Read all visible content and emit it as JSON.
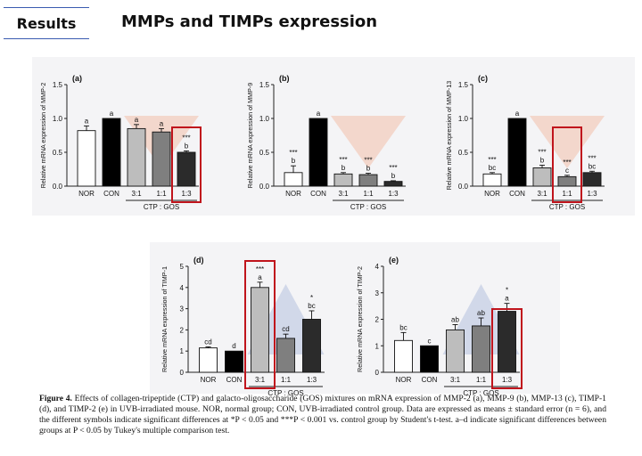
{
  "header": {
    "section_label": "Results",
    "title": "MMPs and TIMPs expression"
  },
  "caption": {
    "lead": "Figure 4.",
    "text": "Effects of collagen-tripeptide (CTP) and galacto-oligosaccharide (GOS) mixtures on mRNA expression of MMP-2 (a), MMP-9 (b), MMP-13 (c), TIMP-1 (d), and TIMP-2 (e) in UVB-irradiated mouse. NOR, normal group; CON, UVB-irradiated control group. Data are expressed as means ± standard error (n = 6), and the different symbols indicate significant differences at *P < 0.05 and ***P < 0.001 vs. control group by Student's t-test. a–d indicate significant differences between groups at P < 0.05 by Tukey's multiple comparison test."
  },
  "colors": {
    "nor": "#ffffff",
    "con": "#000000",
    "r31": "#bdbdbd",
    "r11": "#7f7f7f",
    "r13": "#2b2b2b",
    "highlight": "#c0141c"
  },
  "chart_data": [
    {
      "id": "a",
      "type": "bar",
      "panel_label": "(a)",
      "ylabel": "Relative mRNA expression of MMP-2",
      "ylim": [
        0,
        1.5
      ],
      "yticks": [
        "0.0",
        "0.5",
        "1.0",
        "1.5"
      ],
      "categories": [
        "NOR",
        "CON",
        "3:1",
        "1:1",
        "1:3"
      ],
      "group_label": "CTP : GOS",
      "values": [
        0.82,
        1.0,
        0.85,
        0.8,
        0.5
      ],
      "errors": [
        0.07,
        0.0,
        0.06,
        0.05,
        0.02
      ],
      "letters": [
        "a",
        "a",
        "a",
        "a",
        "b"
      ],
      "stars": [
        "",
        "",
        "",
        "",
        "***"
      ],
      "highlight": [
        4
      ]
    },
    {
      "id": "b",
      "type": "bar",
      "panel_label": "(b)",
      "ylabel": "Relative mRNA expression of MMP-9",
      "ylim": [
        0,
        1.5
      ],
      "yticks": [
        "0.0",
        "0.5",
        "1.0",
        "1.5"
      ],
      "categories": [
        "NOR",
        "CON",
        "3:1",
        "1:1",
        "1:3"
      ],
      "group_label": "CTP : GOS",
      "values": [
        0.2,
        1.0,
        0.18,
        0.17,
        0.07
      ],
      "errors": [
        0.1,
        0.0,
        0.02,
        0.02,
        0.01
      ],
      "letters": [
        "b",
        "a",
        "b",
        "b",
        "b"
      ],
      "stars": [
        "***",
        "",
        "***",
        "***",
        "***"
      ],
      "highlight": []
    },
    {
      "id": "c",
      "type": "bar",
      "panel_label": "(c)",
      "ylabel": "Relative mRNA expression of MMP-13",
      "ylim": [
        0,
        1.5
      ],
      "yticks": [
        "0.0",
        "0.5",
        "1.0",
        "1.5"
      ],
      "categories": [
        "NOR",
        "CON",
        "3:1",
        "1:1",
        "1:3"
      ],
      "group_label": "CTP : GOS",
      "values": [
        0.18,
        1.0,
        0.27,
        0.14,
        0.2
      ],
      "errors": [
        0.02,
        0.0,
        0.04,
        0.02,
        0.02
      ],
      "letters": [
        "bc",
        "a",
        "b",
        "c",
        "bc"
      ],
      "stars": [
        "***",
        "",
        "***",
        "***",
        "***"
      ],
      "highlight": [
        3
      ]
    },
    {
      "id": "d",
      "type": "bar",
      "panel_label": "(d)",
      "ylabel": "Relative mRNA expression of TIMP-1",
      "ylim": [
        0,
        5
      ],
      "yticks": [
        "0",
        "1",
        "2",
        "3",
        "4",
        "5"
      ],
      "categories": [
        "NOR",
        "CON",
        "3:1",
        "1:1",
        "1:3"
      ],
      "group_label": "CTP : GOS",
      "values": [
        1.15,
        1.0,
        4.0,
        1.6,
        2.5
      ],
      "errors": [
        0.05,
        0.0,
        0.25,
        0.2,
        0.4
      ],
      "letters": [
        "cd",
        "d",
        "a",
        "cd",
        "bc"
      ],
      "stars": [
        "",
        "",
        "***",
        "",
        "*"
      ],
      "highlight": [
        2
      ]
    },
    {
      "id": "e",
      "type": "bar",
      "panel_label": "(e)",
      "ylabel": "Relative mRNA expression of TIMP-2",
      "ylim": [
        0,
        4
      ],
      "yticks": [
        "0",
        "1",
        "2",
        "3",
        "4"
      ],
      "categories": [
        "NOR",
        "CON",
        "3:1",
        "1:1",
        "1:3"
      ],
      "group_label": "CTP : GOS",
      "values": [
        1.2,
        1.0,
        1.6,
        1.75,
        2.3
      ],
      "errors": [
        0.3,
        0.0,
        0.2,
        0.3,
        0.3
      ],
      "letters": [
        "bc",
        "c",
        "ab",
        "ab",
        "a"
      ],
      "stars": [
        "",
        "",
        "",
        "",
        "*"
      ],
      "highlight": [
        4
      ]
    }
  ]
}
